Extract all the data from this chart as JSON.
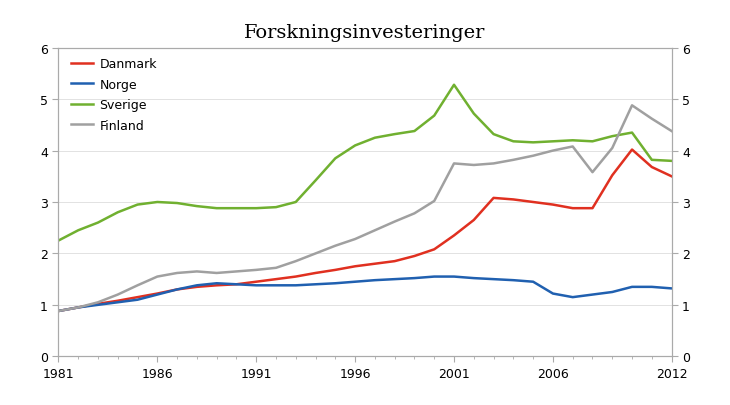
{
  "title": "Forskningsinvesteringer",
  "years": [
    1981,
    1982,
    1983,
    1984,
    1985,
    1986,
    1987,
    1988,
    1989,
    1990,
    1991,
    1992,
    1993,
    1994,
    1995,
    1996,
    1997,
    1998,
    1999,
    2000,
    2001,
    2002,
    2003,
    2004,
    2005,
    2006,
    2007,
    2008,
    2009,
    2010,
    2011,
    2012
  ],
  "Danmark": [
    0.88,
    0.95,
    1.02,
    1.08,
    1.15,
    1.22,
    1.3,
    1.35,
    1.38,
    1.4,
    1.45,
    1.5,
    1.55,
    1.62,
    1.68,
    1.75,
    1.8,
    1.85,
    1.95,
    2.08,
    2.35,
    2.65,
    3.08,
    3.05,
    3.0,
    2.95,
    2.88,
    2.88,
    3.52,
    4.02,
    3.68,
    3.5
  ],
  "Norge": [
    0.88,
    0.95,
    1.0,
    1.05,
    1.1,
    1.2,
    1.3,
    1.38,
    1.42,
    1.4,
    1.38,
    1.38,
    1.38,
    1.4,
    1.42,
    1.45,
    1.48,
    1.5,
    1.52,
    1.55,
    1.55,
    1.52,
    1.5,
    1.48,
    1.45,
    1.22,
    1.15,
    1.2,
    1.25,
    1.35,
    1.35,
    1.32
  ],
  "Sverige": [
    2.25,
    2.45,
    2.6,
    2.8,
    2.95,
    3.0,
    2.98,
    2.92,
    2.88,
    2.88,
    2.88,
    2.9,
    3.0,
    3.42,
    3.85,
    4.1,
    4.25,
    4.32,
    4.38,
    4.68,
    5.28,
    4.72,
    4.32,
    4.18,
    4.16,
    4.18,
    4.2,
    4.18,
    4.28,
    4.35,
    3.82,
    3.8
  ],
  "Finland": [
    0.88,
    0.95,
    1.05,
    1.2,
    1.38,
    1.55,
    1.62,
    1.65,
    1.62,
    1.65,
    1.68,
    1.72,
    1.85,
    2.0,
    2.15,
    2.28,
    2.45,
    2.62,
    2.78,
    3.02,
    3.75,
    3.72,
    3.75,
    3.82,
    3.9,
    4.0,
    4.08,
    3.58,
    4.05,
    4.88,
    4.62,
    4.38
  ],
  "Danmark_color": "#e03020",
  "Norge_color": "#2060b0",
  "Sverige_color": "#70b030",
  "Finland_color": "#a0a0a0",
  "ylim": [
    0,
    6
  ],
  "yticks": [
    0,
    1,
    2,
    3,
    4,
    5,
    6
  ],
  "xlim": [
    1981,
    2012
  ],
  "xticks": [
    1981,
    1986,
    1991,
    1996,
    2001,
    2006,
    2012
  ],
  "line_width": 1.8,
  "title_fontsize": 14,
  "tick_fontsize": 9,
  "legend_fontsize": 9,
  "bg_color": "#ffffff",
  "spine_color": "#aaaaaa",
  "grid_color": "#dddddd"
}
